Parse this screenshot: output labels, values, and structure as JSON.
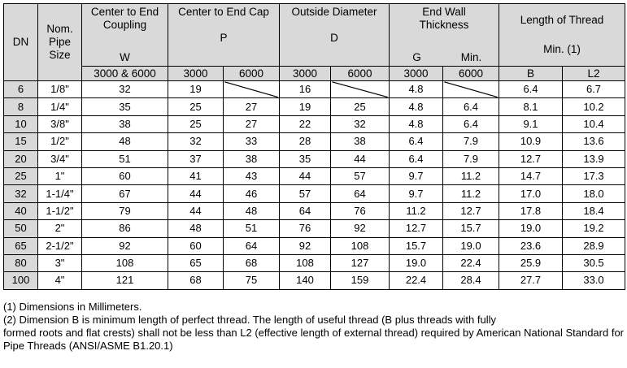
{
  "header": {
    "dn": "DN",
    "nom": "Nom.\nPipe\nSize",
    "coupling_title": "Center to End\nCoupling",
    "coupling_sym": "W",
    "cap_title": "Center to End Cap",
    "cap_sym": "P",
    "od_title": "Outside Diameter",
    "od_sym": "D",
    "wall_title": "End Wall\nThickness",
    "wall_sym_g": "G",
    "wall_sym_min": "Min.",
    "thread_title": "Length of Thread",
    "thread_sub": "Min. (1)",
    "sub_w": "3000 & 6000",
    "sub_p3000": "3000",
    "sub_p6000": "6000",
    "sub_d3000": "3000",
    "sub_d6000": "6000",
    "sub_g3000": "3000",
    "sub_g6000": "6000",
    "sub_b": "B",
    "sub_l2": "L2"
  },
  "rows": [
    {
      "dn": "6",
      "nps": "1/8\"",
      "w": "32",
      "p3000": "19",
      "p6000": "",
      "d3000": "16",
      "d6000": "",
      "g3000": "4.8",
      "g6000": "",
      "b": "6.4",
      "l2": "6.7"
    },
    {
      "dn": "8",
      "nps": "1/4\"",
      "w": "35",
      "p3000": "25",
      "p6000": "27",
      "d3000": "19",
      "d6000": "25",
      "g3000": "4.8",
      "g6000": "6.4",
      "b": "8.1",
      "l2": "10.2"
    },
    {
      "dn": "10",
      "nps": "3/8\"",
      "w": "38",
      "p3000": "25",
      "p6000": "27",
      "d3000": "22",
      "d6000": "32",
      "g3000": "4.8",
      "g6000": "6.4",
      "b": "9.1",
      "l2": "10.4"
    },
    {
      "dn": "15",
      "nps": "1/2\"",
      "w": "48",
      "p3000": "32",
      "p6000": "33",
      "d3000": "28",
      "d6000": "38",
      "g3000": "6.4",
      "g6000": "7.9",
      "b": "10.9",
      "l2": "13.6"
    },
    {
      "dn": "20",
      "nps": "3/4\"",
      "w": "51",
      "p3000": "37",
      "p6000": "38",
      "d3000": "35",
      "d6000": "44",
      "g3000": "6.4",
      "g6000": "7.9",
      "b": "12.7",
      "l2": "13.9"
    },
    {
      "dn": "25",
      "nps": "1\"",
      "w": "60",
      "p3000": "41",
      "p6000": "43",
      "d3000": "44",
      "d6000": "57",
      "g3000": "9.7",
      "g6000": "11.2",
      "b": "14.7",
      "l2": "17.3"
    },
    {
      "dn": "32",
      "nps": "1-1/4\"",
      "w": "67",
      "p3000": "44",
      "p6000": "46",
      "d3000": "57",
      "d6000": "64",
      "g3000": "9.7",
      "g6000": "11.2",
      "b": "17.0",
      "l2": "18.0"
    },
    {
      "dn": "40",
      "nps": "1-1/2\"",
      "w": "79",
      "p3000": "44",
      "p6000": "48",
      "d3000": "64",
      "d6000": "76",
      "g3000": "11.2",
      "g6000": "12.7",
      "b": "17.8",
      "l2": "18.4"
    },
    {
      "dn": "50",
      "nps": "2\"",
      "w": "86",
      "p3000": "48",
      "p6000": "51",
      "d3000": "76",
      "d6000": "92",
      "g3000": "12.7",
      "g6000": "15.7",
      "b": "19.0",
      "l2": "19.2"
    },
    {
      "dn": "65",
      "nps": "2-1/2\"",
      "w": "92",
      "p3000": "60",
      "p6000": "64",
      "d3000": "92",
      "d6000": "108",
      "g3000": "15.7",
      "g6000": "19.0",
      "b": "23.6",
      "l2": "28.9"
    },
    {
      "dn": "80",
      "nps": "3\"",
      "w": "108",
      "p3000": "65",
      "p6000": "68",
      "d3000": "108",
      "d6000": "127",
      "g3000": "19.0",
      "g6000": "22.4",
      "b": "25.9",
      "l2": "30.5"
    },
    {
      "dn": "100",
      "nps": "4\"",
      "w": "121",
      "p3000": "68",
      "p6000": "75",
      "d3000": "140",
      "d6000": "159",
      "g3000": "22.4",
      "g6000": "28.4",
      "b": "27.7",
      "l2": "33.0"
    }
  ],
  "notes": {
    "note1": "(1) Dimensions in Millimeters.",
    "note2_first": "(2) Dimension B is minimum length of perfect thread.   The length of useful thread (B plus threads with fully",
    "note2_rest": "formed roots and flat crests) shall not be less than L2 (effective length of external thread) required by American National Standard for Pipe Threads (ANSI/ASME B1.20.1)"
  }
}
